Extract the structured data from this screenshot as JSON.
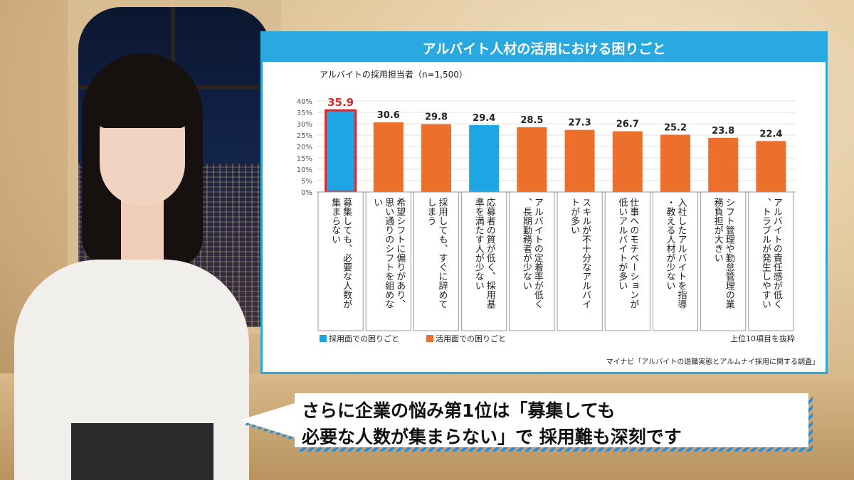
{
  "chart_data": {
    "type": "bar",
    "title": "アルバイト人材の活用における困りごと",
    "subtitle": "アルバイトの採用担当者（n=1,500）",
    "y_ticks": [
      "40%",
      "35%",
      "30%",
      "25%",
      "20%",
      "15%",
      "10%",
      "5%",
      "0%"
    ],
    "ylim": [
      0,
      40
    ],
    "categories": [
      "募集しても、必要な人数が集まらない",
      "希望シフトに偏りがあり、思い通りのシフトを組めない",
      "採用しても、すぐに辞めてしまう",
      "応募者の質が低く、採用基準を満たす人が少ない",
      "アルバイトの定着率が低く、長期勤務者が少ない",
      "スキルが不十分なアルバイトが多い",
      "仕事へのモチベーションが低いアルバイトが多い",
      "入社したアルバイトを指導・教える人材が少ない",
      "シフト管理や勤怠管理の業務負担が大きい",
      "アルバイトの責任感が低く、トラブルが発生しやすい"
    ],
    "value_labels": [
      "35.9",
      "30.6",
      "29.8",
      "29.4",
      "28.5",
      "27.3",
      "26.7",
      "25.2",
      "23.8",
      "22.4"
    ],
    "values": [
      35.9,
      30.6,
      29.8,
      29.4,
      28.5,
      27.3,
      26.7,
      25.2,
      23.8,
      22.4
    ],
    "bar_types": [
      "recruit",
      "use",
      "use",
      "recruit",
      "use",
      "use",
      "use",
      "use",
      "use",
      "use"
    ],
    "highlight_index": 0,
    "legend": [
      {
        "key": "recruit",
        "label": "採用面での困りごと",
        "color": "#1ea5e4"
      },
      {
        "key": "use",
        "label": "活用面での困りごと",
        "color": "#ec6f2b"
      }
    ],
    "note": "上位10項目を抜粋",
    "source": "マイナビ「アルバイトの退職実態とアルムナイ採用に関する調査」",
    "colors": {
      "recruit": "#1ea5e4",
      "use": "#ec6f2b",
      "highlight_border": "#e0262a",
      "highlight_label": "#e0262a",
      "panel_border": "#29a9e0"
    }
  },
  "caption": {
    "line1": "さらに企業の悩み第1位は「募集しても",
    "line2": "必要な人数が集まらない」で 採用難も深刻です"
  }
}
